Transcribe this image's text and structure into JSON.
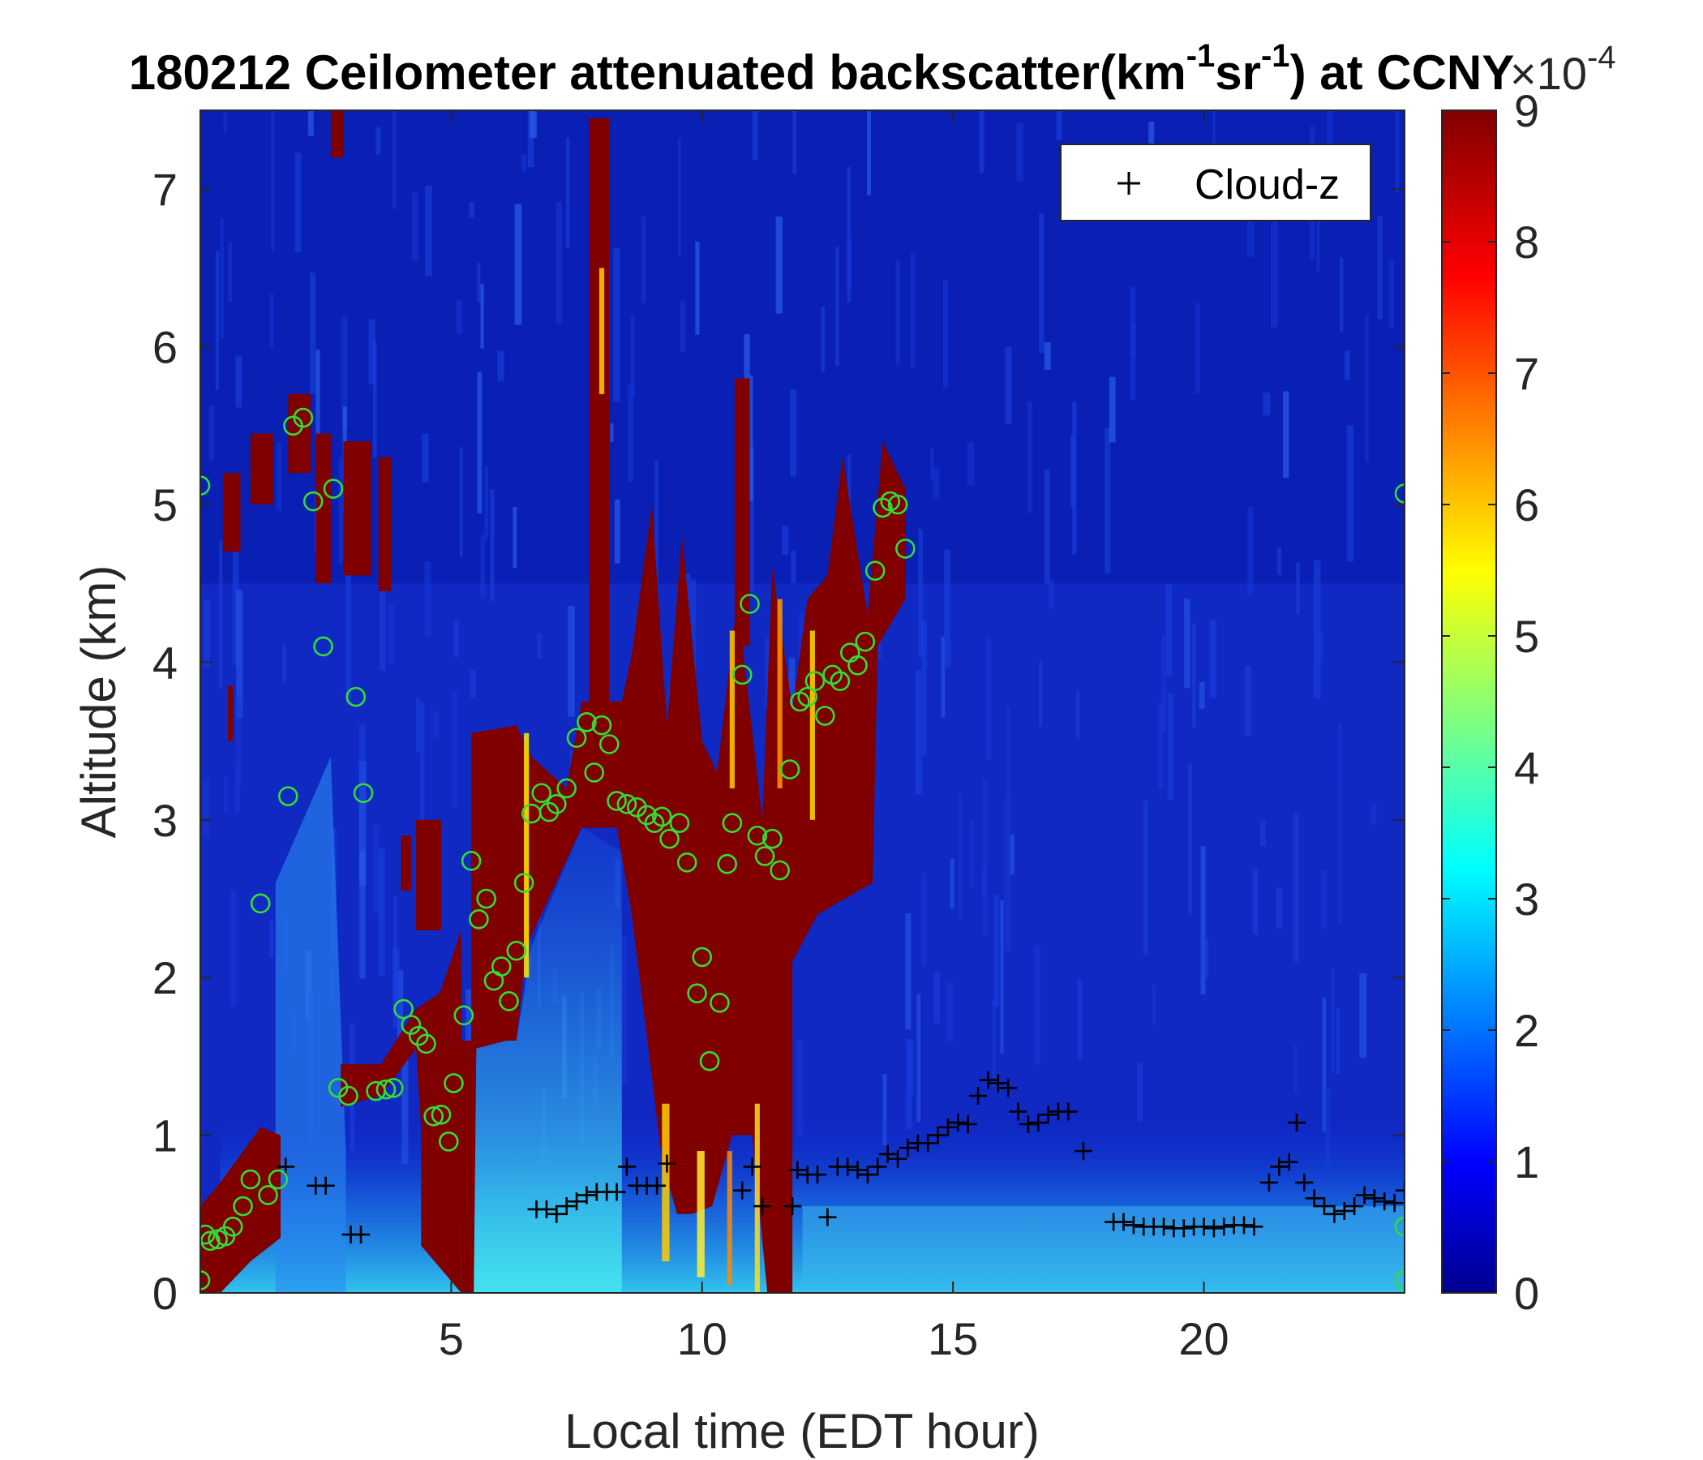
{
  "chart_data": {
    "type": "heatmap",
    "title_parts": [
      "180212 Ceilometer attenuated backscatter(km",
      "-1",
      "sr",
      "-1",
      ") at CCNY"
    ],
    "xlabel": "Local time (EDT hour)",
    "ylabel": "Altitude (km)",
    "xlim": [
      0,
      24
    ],
    "ylim": [
      0,
      7.5
    ],
    "x_ticks": [
      5,
      10,
      15,
      20
    ],
    "y_ticks": [
      0,
      1,
      2,
      3,
      4,
      5,
      6,
      7
    ],
    "colorbar": {
      "min": 0,
      "max": 9,
      "ticks": [
        0,
        1,
        2,
        3,
        4,
        5,
        6,
        7,
        8,
        9
      ],
      "exponent_label": "×10",
      "exponent_power": "-4",
      "colormap": "jet"
    },
    "legend": {
      "position": "top-right",
      "entries": [
        {
          "name": "Cloud-z",
          "marker": "+",
          "color": "#000000"
        }
      ]
    },
    "series": [
      {
        "name": "Cloud-z",
        "marker": "plus",
        "color": "#000000",
        "points": [
          [
            1.7,
            0.8
          ],
          [
            2.3,
            0.68
          ],
          [
            2.5,
            0.68
          ],
          [
            3.0,
            0.37
          ],
          [
            3.2,
            0.37
          ],
          [
            6.7,
            0.53
          ],
          [
            6.9,
            0.53
          ],
          [
            7.1,
            0.5
          ],
          [
            7.3,
            0.55
          ],
          [
            7.5,
            0.58
          ],
          [
            7.7,
            0.62
          ],
          [
            7.9,
            0.64
          ],
          [
            8.1,
            0.64
          ],
          [
            8.3,
            0.64
          ],
          [
            8.5,
            0.8
          ],
          [
            8.7,
            0.68
          ],
          [
            8.9,
            0.68
          ],
          [
            9.1,
            0.68
          ],
          [
            9.3,
            0.82
          ],
          [
            10.8,
            0.65
          ],
          [
            11.0,
            0.8
          ],
          [
            11.2,
            0.55
          ],
          [
            11.8,
            0.55
          ],
          [
            11.9,
            0.78
          ],
          [
            12.1,
            0.75
          ],
          [
            12.3,
            0.75
          ],
          [
            12.5,
            0.48
          ],
          [
            12.7,
            0.8
          ],
          [
            12.9,
            0.8
          ],
          [
            13.1,
            0.78
          ],
          [
            13.3,
            0.75
          ],
          [
            13.5,
            0.8
          ],
          [
            13.7,
            0.88
          ],
          [
            13.9,
            0.85
          ],
          [
            14.1,
            0.92
          ],
          [
            14.3,
            0.95
          ],
          [
            14.5,
            0.95
          ],
          [
            14.7,
            1.0
          ],
          [
            14.9,
            1.05
          ],
          [
            15.1,
            1.08
          ],
          [
            15.3,
            1.07
          ],
          [
            15.5,
            1.25
          ],
          [
            15.7,
            1.35
          ],
          [
            15.9,
            1.33
          ],
          [
            16.1,
            1.3
          ],
          [
            16.3,
            1.15
          ],
          [
            16.5,
            1.07
          ],
          [
            16.7,
            1.08
          ],
          [
            16.9,
            1.13
          ],
          [
            17.1,
            1.15
          ],
          [
            17.3,
            1.15
          ],
          [
            17.6,
            0.9
          ],
          [
            18.2,
            0.45
          ],
          [
            18.4,
            0.45
          ],
          [
            18.6,
            0.43
          ],
          [
            18.8,
            0.42
          ],
          [
            19.0,
            0.42
          ],
          [
            19.2,
            0.42
          ],
          [
            19.4,
            0.41
          ],
          [
            19.6,
            0.41
          ],
          [
            19.8,
            0.42
          ],
          [
            20.0,
            0.42
          ],
          [
            20.2,
            0.41
          ],
          [
            20.4,
            0.42
          ],
          [
            20.6,
            0.43
          ],
          [
            20.8,
            0.43
          ],
          [
            21.0,
            0.42
          ],
          [
            21.3,
            0.7
          ],
          [
            21.5,
            0.8
          ],
          [
            21.7,
            0.83
          ],
          [
            21.85,
            1.08
          ],
          [
            22.0,
            0.7
          ],
          [
            22.2,
            0.6
          ],
          [
            22.4,
            0.55
          ],
          [
            22.6,
            0.5
          ],
          [
            22.8,
            0.52
          ],
          [
            23.0,
            0.55
          ],
          [
            23.2,
            0.62
          ],
          [
            23.4,
            0.6
          ],
          [
            23.6,
            0.58
          ],
          [
            23.8,
            0.57
          ],
          [
            24.0,
            0.65
          ]
        ]
      },
      {
        "name": "",
        "marker": "circle",
        "color": "#33dd33",
        "points": [
          [
            0.0,
            5.12
          ],
          [
            0.0,
            0.08
          ],
          [
            0.1,
            0.37
          ],
          [
            0.2,
            0.33
          ],
          [
            0.35,
            0.34
          ],
          [
            0.5,
            0.36
          ],
          [
            0.65,
            0.42
          ],
          [
            0.85,
            0.55
          ],
          [
            1.0,
            0.72
          ],
          [
            1.2,
            2.47
          ],
          [
            1.35,
            0.62
          ],
          [
            1.55,
            0.72
          ],
          [
            1.75,
            3.15
          ],
          [
            1.85,
            5.5
          ],
          [
            2.05,
            5.55
          ],
          [
            2.25,
            5.02
          ],
          [
            2.45,
            4.1
          ],
          [
            2.65,
            5.1
          ],
          [
            2.75,
            1.3
          ],
          [
            2.95,
            1.25
          ],
          [
            3.1,
            3.78
          ],
          [
            3.25,
            3.17
          ],
          [
            3.5,
            1.28
          ],
          [
            3.7,
            1.29
          ],
          [
            3.85,
            1.3
          ],
          [
            4.05,
            1.8
          ],
          [
            4.2,
            1.7
          ],
          [
            4.35,
            1.63
          ],
          [
            4.5,
            1.58
          ],
          [
            4.65,
            1.12
          ],
          [
            4.8,
            1.13
          ],
          [
            4.95,
            0.96
          ],
          [
            5.05,
            1.33
          ],
          [
            5.25,
            1.76
          ],
          [
            5.4,
            2.74
          ],
          [
            5.55,
            2.37
          ],
          [
            5.7,
            2.5
          ],
          [
            5.85,
            1.98
          ],
          [
            6.0,
            2.07
          ],
          [
            6.15,
            1.85
          ],
          [
            6.3,
            2.17
          ],
          [
            6.45,
            2.6
          ],
          [
            6.6,
            3.04
          ],
          [
            6.8,
            3.17
          ],
          [
            6.95,
            3.05
          ],
          [
            7.1,
            3.1
          ],
          [
            7.3,
            3.2
          ],
          [
            7.5,
            3.52
          ],
          [
            7.7,
            3.62
          ],
          [
            7.85,
            3.3
          ],
          [
            8.0,
            3.6
          ],
          [
            8.15,
            3.48
          ],
          [
            8.3,
            3.12
          ],
          [
            8.5,
            3.1
          ],
          [
            8.7,
            3.08
          ],
          [
            8.9,
            3.03
          ],
          [
            9.05,
            2.98
          ],
          [
            9.2,
            3.02
          ],
          [
            9.35,
            2.88
          ],
          [
            9.55,
            2.98
          ],
          [
            9.7,
            2.73
          ],
          [
            9.9,
            1.9
          ],
          [
            10.0,
            2.13
          ],
          [
            10.15,
            1.47
          ],
          [
            10.35,
            1.84
          ],
          [
            10.5,
            2.72
          ],
          [
            10.6,
            2.98
          ],
          [
            10.8,
            3.92
          ],
          [
            10.95,
            4.37
          ],
          [
            11.1,
            2.9
          ],
          [
            11.25,
            2.77
          ],
          [
            11.4,
            2.88
          ],
          [
            11.55,
            2.68
          ],
          [
            11.75,
            3.32
          ],
          [
            11.95,
            3.75
          ],
          [
            12.1,
            3.78
          ],
          [
            12.25,
            3.88
          ],
          [
            12.45,
            3.66
          ],
          [
            12.6,
            3.92
          ],
          [
            12.75,
            3.88
          ],
          [
            12.95,
            4.06
          ],
          [
            13.1,
            3.98
          ],
          [
            13.25,
            4.13
          ],
          [
            13.45,
            4.58
          ],
          [
            13.6,
            4.98
          ],
          [
            13.75,
            5.02
          ],
          [
            13.9,
            5.0
          ],
          [
            14.05,
            4.72
          ],
          [
            24.0,
            5.07
          ],
          [
            24.0,
            0.42
          ],
          [
            24.0,
            0.08
          ]
        ]
      }
    ]
  }
}
